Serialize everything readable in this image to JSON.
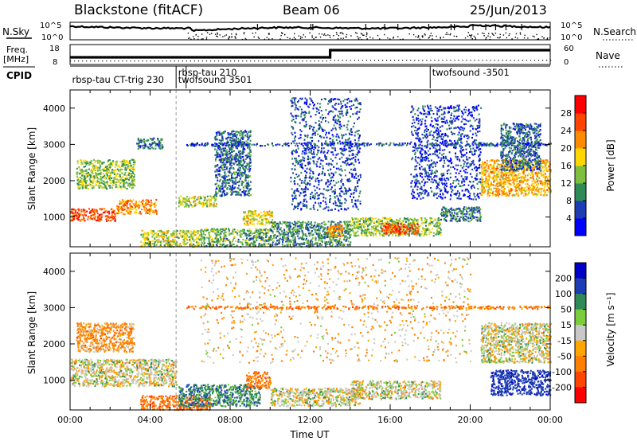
{
  "header": {
    "station": "Blackstone (fitACF)",
    "beam": "Beam 06",
    "date": "25/Jun/2013"
  },
  "left_labels": {
    "nsky": "N.Sky",
    "freq_line1": "Freq.",
    "freq_line2": "[MHz]",
    "cpid": "CPID"
  },
  "right_labels": {
    "nsearch": "N.Search",
    "nave": "Nave"
  },
  "noise_axis": {
    "left_ticks": [
      "10^5",
      "10^0"
    ],
    "right_ticks": [
      "10^5",
      "10^0"
    ]
  },
  "freq_axis": {
    "left_ticks": [
      "18",
      "8"
    ],
    "right_ticks": [
      "60",
      "0"
    ]
  },
  "cpid_labels": [
    {
      "text": "rbsp-tau CT-trig 230",
      "hour": 0.1,
      "row": 1
    },
    {
      "text": "rbsp-tau 210",
      "hour": 5.4,
      "row": 0
    },
    {
      "text": "twofsound 3501",
      "hour": 5.4,
      "row": 1
    },
    {
      "text": "twofsound -3501",
      "hour": 18.1,
      "row": 0
    }
  ],
  "cpid_switch_hours": [
    5.3,
    5.8,
    18.0
  ],
  "freq_step_hour": 13.0,
  "chart_data": [
    {
      "type": "heatmap",
      "title": "",
      "xlabel": "",
      "ylabel": "Slant Range [km]",
      "xlim": [
        0,
        24
      ],
      "ylim": [
        180,
        4500
      ],
      "yticks": [
        1000,
        2000,
        3000,
        4000
      ],
      "colorbar_label": "Power [dB]",
      "colorbar_ticks": [
        "4",
        "8",
        "12",
        "16",
        "20",
        "24",
        "28"
      ],
      "colorbar_range": [
        0,
        32
      ],
      "colorbar_colors": [
        "#0000ff",
        "#1e3cb4",
        "#2e8b57",
        "#7fbf3f",
        "#ffd700",
        "#ff8c00",
        "#ff4500",
        "#ff0000"
      ],
      "regions": [
        {
          "t0": 0.0,
          "t1": 2.3,
          "r0": 900,
          "r1": 1250,
          "level": 26
        },
        {
          "t0": 2.3,
          "t1": 4.3,
          "r0": 1100,
          "r1": 1500,
          "level": 22
        },
        {
          "t0": 0.3,
          "t1": 3.2,
          "r0": 1800,
          "r1": 2600,
          "level": 14
        },
        {
          "t0": 3.3,
          "t1": 4.6,
          "r0": 2900,
          "r1": 3200,
          "level": 8
        },
        {
          "t0": 5.4,
          "t1": 7.3,
          "r0": 1300,
          "r1": 1600,
          "level": 16
        },
        {
          "t0": 3.5,
          "t1": 6.5,
          "r0": 200,
          "r1": 650,
          "level": 16
        },
        {
          "t0": 6.5,
          "t1": 10.0,
          "r0": 200,
          "r1": 700,
          "level": 12
        },
        {
          "t0": 8.6,
          "t1": 10.1,
          "r0": 800,
          "r1": 1200,
          "level": 18
        },
        {
          "t0": 7.2,
          "t1": 9.0,
          "r0": 1600,
          "r1": 3400,
          "level": 8
        },
        {
          "t0": 10.0,
          "t1": 14.0,
          "r0": 200,
          "r1": 900,
          "level": 10
        },
        {
          "t0": 12.8,
          "t1": 13.6,
          "r0": 500,
          "r1": 800,
          "level": 22
        },
        {
          "t0": 11.0,
          "t1": 14.5,
          "r0": 1200,
          "r1": 4300,
          "level": 6
        },
        {
          "t0": 14.0,
          "t1": 18.5,
          "r0": 500,
          "r1": 1000,
          "level": 14
        },
        {
          "t0": 15.5,
          "t1": 17.4,
          "r0": 550,
          "r1": 850,
          "level": 26
        },
        {
          "t0": 18.5,
          "t1": 20.5,
          "r0": 900,
          "r1": 1300,
          "level": 9
        },
        {
          "t0": 17.0,
          "t1": 20.5,
          "r0": 1500,
          "r1": 4100,
          "level": 5
        },
        {
          "t0": 20.5,
          "t1": 24.0,
          "r0": 1600,
          "r1": 2600,
          "level": 20
        },
        {
          "t0": 21.5,
          "t1": 23.5,
          "r0": 2300,
          "r1": 3600,
          "level": 8
        },
        {
          "t0": 5.8,
          "t1": 24.0,
          "r0": 2980,
          "r1": 3060,
          "level": 6
        }
      ]
    },
    {
      "type": "heatmap",
      "title": "",
      "xlabel": "Time UT",
      "ylabel": "Slant Range [km]",
      "xlim": [
        0,
        24
      ],
      "ylim": [
        180,
        4500
      ],
      "xticks": [
        "00:00",
        "04:00",
        "08:00",
        "12:00",
        "16:00",
        "20:00",
        "00:00"
      ],
      "yticks": [
        1000,
        2000,
        3000,
        4000
      ],
      "colorbar_label": "Velocity [m s⁻¹]",
      "colorbar_ticks": [
        "200",
        "100",
        "50",
        "15",
        "-15",
        "-50",
        "-100",
        "-200"
      ],
      "colorbar_colors": [
        "#0000c8",
        "#1e3cb4",
        "#2e8b57",
        "#7ccd3c",
        "#c8c8c8",
        "#ffa500",
        "#ff7f00",
        "#ff4500",
        "#ff0000"
      ],
      "regions": [
        {
          "t0": 0.0,
          "t1": 5.3,
          "r0": 850,
          "r1": 1600,
          "level": 0
        },
        {
          "t0": 0.3,
          "t1": 3.2,
          "r0": 1800,
          "r1": 2600,
          "level": -40
        },
        {
          "t0": 3.5,
          "t1": 7.0,
          "r0": 200,
          "r1": 600,
          "level": -70
        },
        {
          "t0": 5.4,
          "t1": 9.5,
          "r0": 300,
          "r1": 900,
          "level": 60
        },
        {
          "t0": 8.8,
          "t1": 10.0,
          "r0": 800,
          "r1": 1250,
          "level": -60
        },
        {
          "t0": 10.0,
          "t1": 14.5,
          "r0": 300,
          "r1": 800,
          "level": 0
        },
        {
          "t0": 14.0,
          "t1": 18.5,
          "r0": 500,
          "r1": 1000,
          "level": 0
        },
        {
          "t0": 20.5,
          "t1": 24.0,
          "r0": 1500,
          "r1": 2600,
          "level": 0
        },
        {
          "t0": 21.0,
          "t1": 24.0,
          "r0": 600,
          "r1": 1300,
          "level": 120
        },
        {
          "t0": 6.5,
          "t1": 20.0,
          "r0": 1500,
          "r1": 4400,
          "level": -20
        },
        {
          "t0": 5.8,
          "t1": 24.0,
          "r0": 2980,
          "r1": 3060,
          "level": -60
        }
      ]
    }
  ]
}
